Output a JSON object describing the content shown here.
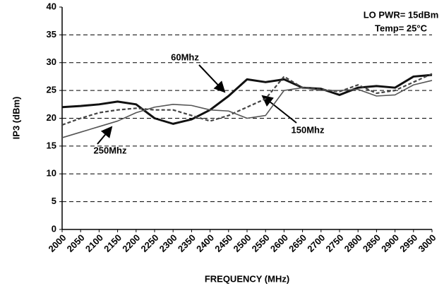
{
  "chart_data": {
    "type": "line",
    "annotations": [
      "LO PWR= 15dBm",
      "Temp= 25°C"
    ],
    "xlabel": "FREQUENCY (MHz)",
    "ylabel": "IP3 (dBm)",
    "x": [
      2000,
      2050,
      2100,
      2150,
      2200,
      2250,
      2300,
      2350,
      2400,
      2450,
      2500,
      2550,
      2600,
      2650,
      2700,
      2750,
      2800,
      2850,
      2900,
      2950,
      3000
    ],
    "series": [
      {
        "name": "60Mhz",
        "color": "#111111",
        "values": [
          22,
          22.2,
          22.5,
          23,
          22.5,
          20,
          19,
          19.8,
          21.5,
          24,
          27,
          26.5,
          27,
          25.5,
          25.3,
          24.2,
          25.5,
          25.8,
          25.5,
          27.5,
          27.8
        ]
      },
      {
        "name": "150Mhz",
        "color": "#444444",
        "dashed": true,
        "values": [
          18.8,
          20,
          21,
          21.5,
          21.8,
          21.5,
          21.5,
          20.5,
          19.5,
          20.5,
          22,
          23.5,
          27.5,
          25.5,
          25.2,
          24.8,
          26,
          24.5,
          25,
          26.5,
          28
        ]
      },
      {
        "name": "250Mhz",
        "color": "#555555",
        "values": [
          16.5,
          17.5,
          18.5,
          19.5,
          21,
          22,
          22.5,
          22.3,
          21.5,
          21.3,
          20,
          20.5,
          25,
          25.5,
          25,
          25,
          25.2,
          24,
          24.2,
          26,
          26.8
        ]
      }
    ],
    "xlim": [
      2000,
      3000
    ],
    "xticks": [
      2000,
      2050,
      2100,
      2150,
      2200,
      2250,
      2300,
      2350,
      2400,
      2450,
      2500,
      2550,
      2600,
      2650,
      2700,
      2750,
      2800,
      2850,
      2900,
      2950,
      3000
    ],
    "ylim": [
      0,
      40
    ],
    "yticks": [
      0,
      5,
      10,
      15,
      20,
      25,
      30,
      35,
      40
    ],
    "grid": true
  }
}
